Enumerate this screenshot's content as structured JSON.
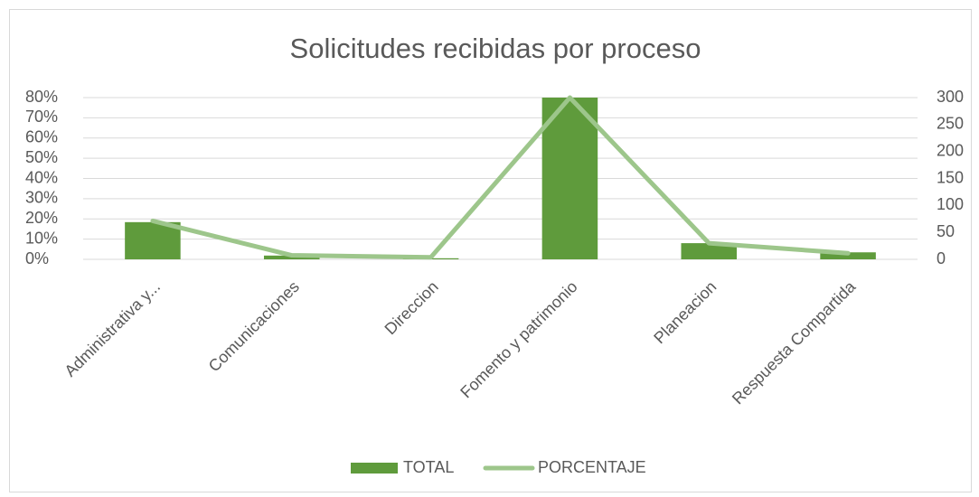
{
  "chart_data": {
    "type": "bar_line",
    "title": "Solicitudes recibidas por proceso",
    "categories": [
      "Administrativa y...",
      "Comunicaciones",
      "Direccion",
      "Fomento y patrimonio",
      "Planeacion",
      "Respuesta Compartida"
    ],
    "series": [
      {
        "name": "TOTAL",
        "type": "bar",
        "color": "#5f9b3c",
        "axis": "y2",
        "values": [
          69,
          7,
          2,
          300,
          30,
          13
        ]
      },
      {
        "name": "PORCENTAJE",
        "type": "line",
        "color": "#9dc68b",
        "values": [
          19,
          2,
          1,
          80,
          8,
          3
        ]
      }
    ],
    "ylim": [
      0,
      80
    ],
    "yticks": [
      {
        "value": 0,
        "label": "0%"
      },
      {
        "value": 10,
        "label": "10%"
      },
      {
        "value": 20,
        "label": "20%"
      },
      {
        "value": 30,
        "label": "30%"
      },
      {
        "value": 40,
        "label": "40%"
      },
      {
        "value": 50,
        "label": "50%"
      },
      {
        "value": 60,
        "label": "60%"
      },
      {
        "value": 70,
        "label": "70%"
      },
      {
        "value": 80,
        "label": "80%"
      }
    ],
    "y2lim": [
      0,
      300
    ],
    "y2ticks": [
      0,
      50,
      100,
      150,
      200,
      250,
      300
    ],
    "grid": true,
    "legend": "bottom"
  }
}
